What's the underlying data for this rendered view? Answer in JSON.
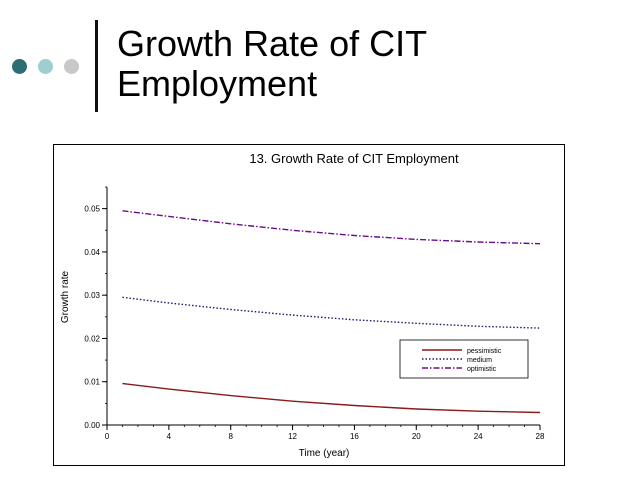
{
  "slide": {
    "title_line1": "Growth Rate of CIT",
    "title_line2": "Employment",
    "dots": [
      {
        "name": "dot-dark",
        "color": "#2E6E72"
      },
      {
        "name": "dot-light",
        "color": "#9DCFD0"
      },
      {
        "name": "dot-gray",
        "color": "#C8C8C8"
      }
    ]
  },
  "chart_data": {
    "type": "line",
    "title": "13.   Growth Rate of CIT Employment",
    "xlabel": "Time (year)",
    "ylabel": "Growth rate",
    "xlim": [
      0,
      28
    ],
    "ylim": [
      0,
      0.055
    ],
    "xticks": [
      0,
      4,
      8,
      12,
      16,
      20,
      24,
      28
    ],
    "xtick_labels": [
      "0",
      "4",
      "8",
      "12",
      "16",
      "20",
      "24",
      "28"
    ],
    "yticks": [
      0,
      0.01,
      0.02,
      0.03,
      0.04,
      0.05
    ],
    "ytick_labels": [
      "0.00",
      "0.01",
      "0.02",
      "0.03",
      "0.04",
      "0.05"
    ],
    "grid": false,
    "legend_position": "lower-right",
    "x": [
      1,
      4,
      8,
      12,
      16,
      20,
      24,
      28
    ],
    "series": [
      {
        "name": "pessimistic",
        "color": "#8B1A1A",
        "style": "solid",
        "values": [
          0.0096,
          0.0083,
          0.0068,
          0.0055,
          0.0045,
          0.0037,
          0.0032,
          0.0029
        ]
      },
      {
        "name": "medium",
        "color": "#1A1A6E",
        "style": "dotted",
        "values": [
          0.0295,
          0.0282,
          0.0267,
          0.0254,
          0.0243,
          0.0235,
          0.0228,
          0.0224
        ]
      },
      {
        "name": "optimistic",
        "color": "#6A0D8A",
        "style": "dashdot",
        "values": [
          0.0495,
          0.0482,
          0.0465,
          0.045,
          0.0438,
          0.0429,
          0.0423,
          0.0419
        ]
      }
    ]
  }
}
